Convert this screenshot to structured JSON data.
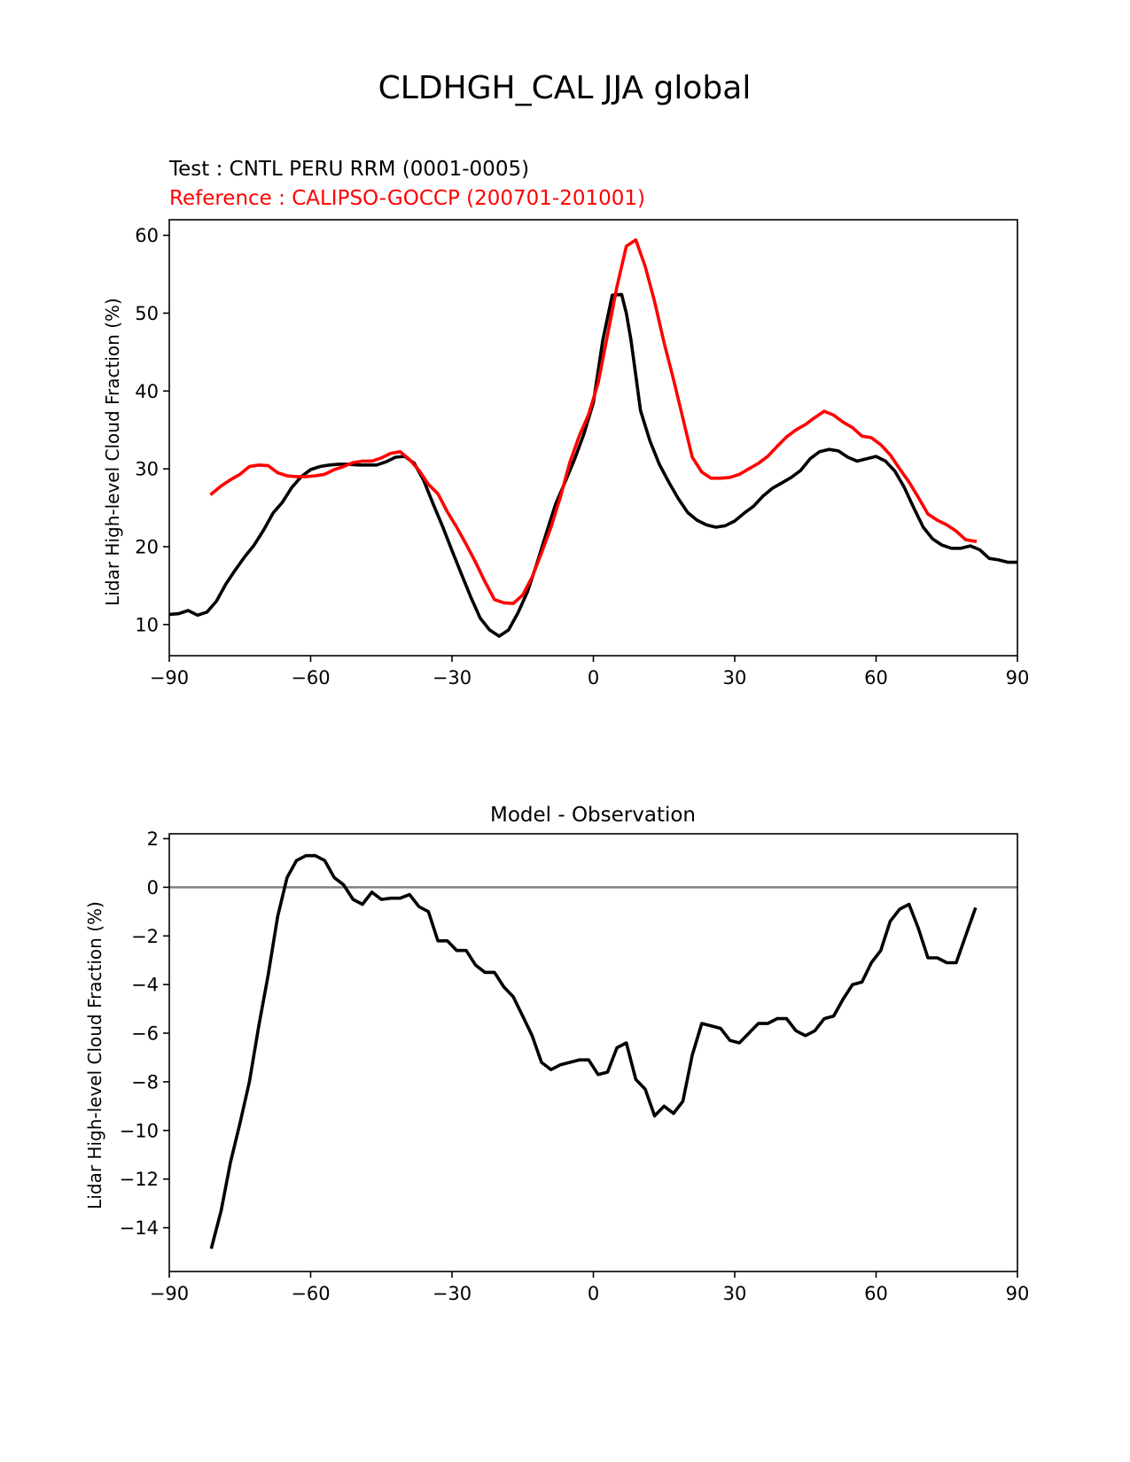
{
  "figure": {
    "suptitle": "CLDHGH_CAL JJA global",
    "colors": {
      "test": "#000000",
      "reference": "#ff0000",
      "zero_line": "#808080",
      "axes": "#000000"
    }
  },
  "chart_data": [
    {
      "type": "line",
      "test_label": "Test : CNTL PERU RRM (0001-0005)",
      "reference_label": "Reference : CALIPSO-GOCCP (200701-201001)",
      "xlabel": "",
      "ylabel": "Lidar High-level Cloud Fraction (%)",
      "xlim": [
        -90,
        90
      ],
      "ylim": [
        6,
        62
      ],
      "xticks": [
        -90,
        -60,
        -30,
        0,
        30,
        60,
        90
      ],
      "xtick_labels": [
        "−90",
        "−60",
        "−30",
        "0",
        "30",
        "60",
        "90"
      ],
      "yticks": [
        10,
        20,
        30,
        40,
        50,
        60
      ],
      "ytick_labels": [
        "10",
        "20",
        "30",
        "40",
        "50",
        "60"
      ],
      "series": [
        {
          "name": "Test",
          "color": "#000000",
          "x": [
            -90,
            -88,
            -86,
            -84,
            -82,
            -80,
            -78,
            -76,
            -74,
            -72,
            -70,
            -68,
            -66,
            -64,
            -62,
            -60,
            -58,
            -56,
            -54,
            -52,
            -50,
            -48,
            -46,
            -44,
            -42,
            -40,
            -38,
            -36,
            -34,
            -32,
            -30,
            -28,
            -26,
            -24,
            -22,
            -20,
            -18,
            -16,
            -14,
            -12,
            -10,
            -8,
            -6,
            -4,
            -2,
            0,
            2,
            4,
            6,
            7,
            8,
            9,
            10,
            12,
            14,
            16,
            18,
            20,
            22,
            24,
            26,
            28,
            30,
            32,
            34,
            36,
            38,
            40,
            42,
            44,
            46,
            48,
            50,
            52,
            54,
            56,
            58,
            60,
            62,
            64,
            66,
            68,
            70,
            72,
            74,
            76,
            78,
            80,
            82,
            84,
            86,
            88,
            90
          ],
          "values": [
            11.3,
            11.4,
            11.8,
            11.2,
            11.6,
            13.0,
            15.2,
            17.0,
            18.7,
            20.2,
            22.1,
            24.3,
            25.7,
            27.6,
            29.0,
            29.9,
            30.3,
            30.5,
            30.6,
            30.6,
            30.5,
            30.5,
            30.5,
            30.9,
            31.5,
            31.6,
            30.7,
            28.5,
            25.5,
            22.6,
            19.5,
            16.5,
            13.5,
            10.8,
            9.3,
            8.5,
            9.3,
            11.5,
            14.2,
            17.8,
            21.7,
            25.5,
            28.3,
            31.2,
            34.5,
            38.5,
            46.5,
            52.3,
            52.4,
            50.0,
            46.5,
            42.0,
            37.5,
            33.6,
            30.6,
            28.3,
            26.2,
            24.4,
            23.4,
            22.8,
            22.5,
            22.7,
            23.3,
            24.3,
            25.2,
            26.5,
            27.5,
            28.2,
            28.9,
            29.8,
            31.3,
            32.2,
            32.5,
            32.3,
            31.5,
            31.0,
            31.3,
            31.6,
            31.0,
            29.7,
            27.6,
            25.0,
            22.5,
            21.0,
            20.2,
            19.8,
            19.8,
            20.1,
            19.6,
            18.5,
            18.3,
            18.0,
            18.0
          ]
        },
        {
          "name": "Reference",
          "color": "#ff0000",
          "x": [
            -81,
            -79,
            -77,
            -75,
            -73,
            -71,
            -69,
            -67,
            -65,
            -63,
            -61,
            -59,
            -57,
            -55,
            -53,
            -51,
            -49,
            -47,
            -45,
            -43,
            -41,
            -39,
            -37,
            -35,
            -33,
            -31,
            -29,
            -27,
            -25,
            -23,
            -21,
            -19,
            -17,
            -15,
            -13,
            -11,
            -9,
            -7,
            -5,
            -3,
            -1,
            1,
            3,
            5,
            7,
            9,
            11,
            13,
            15,
            17,
            19,
            21,
            23,
            25,
            27,
            29,
            31,
            33,
            35,
            37,
            39,
            41,
            43,
            45,
            47,
            49,
            51,
            53,
            55,
            57,
            59,
            61,
            63,
            65,
            67,
            69,
            71,
            73,
            75,
            77,
            79,
            81
          ],
          "values": [
            26.8,
            27.8,
            28.6,
            29.3,
            30.3,
            30.5,
            30.4,
            29.5,
            29.1,
            29.0,
            29.0,
            29.1,
            29.3,
            29.9,
            30.3,
            30.8,
            31.0,
            31.0,
            31.4,
            32.0,
            32.2,
            31.2,
            29.8,
            28.0,
            26.8,
            24.5,
            22.5,
            20.3,
            18.0,
            15.5,
            13.2,
            12.8,
            12.7,
            13.8,
            16.1,
            19.2,
            22.5,
            26.4,
            30.8,
            34.2,
            37.0,
            41.0,
            47.2,
            53.4,
            58.6,
            59.4,
            56.0,
            51.5,
            46.2,
            41.5,
            36.5,
            31.5,
            29.6,
            28.8,
            28.8,
            28.9,
            29.3,
            30.0,
            30.7,
            31.6,
            32.9,
            34.1,
            35.0,
            35.7,
            36.6,
            37.4,
            36.9,
            36.0,
            35.3,
            34.2,
            34.0,
            33.1,
            31.8,
            30.0,
            28.3,
            26.3,
            24.2,
            23.4,
            22.8,
            22.0,
            20.9,
            20.7
          ]
        }
      ]
    },
    {
      "type": "line",
      "title": "Model - Observation",
      "xlabel": "",
      "ylabel": "Lidar High-level Cloud Fraction (%)",
      "xlim": [
        -90,
        90
      ],
      "ylim": [
        -15.8,
        2.2
      ],
      "xticks": [
        -90,
        -60,
        -30,
        0,
        30,
        60,
        90
      ],
      "xtick_labels": [
        "−90",
        "−60",
        "−30",
        "0",
        "30",
        "60",
        "90"
      ],
      "yticks": [
        2,
        0,
        -2,
        -4,
        -6,
        -8,
        -10,
        -12,
        -14
      ],
      "ytick_labels": [
        "2",
        "0",
        "−2",
        "−4",
        "−6",
        "−8",
        "−10",
        "−12",
        "−14"
      ],
      "zero_line": 0,
      "series": [
        {
          "name": "Model - Observation",
          "color": "#000000",
          "x": [
            -81,
            -79,
            -77,
            -75,
            -73,
            -71,
            -69,
            -67,
            -65,
            -63,
            -61,
            -59,
            -57,
            -55,
            -53,
            -51,
            -49,
            -47,
            -45,
            -43,
            -41,
            -39,
            -37,
            -35,
            -33,
            -31,
            -29,
            -27,
            -25,
            -23,
            -21,
            -19,
            -17,
            -15,
            -13,
            -11,
            -9,
            -7,
            -5,
            -3,
            -1,
            1,
            3,
            5,
            7,
            9,
            11,
            13,
            15,
            17,
            19,
            21,
            23,
            25,
            27,
            29,
            31,
            33,
            35,
            37,
            39,
            41,
            43,
            45,
            47,
            49,
            51,
            53,
            55,
            57,
            59,
            61,
            63,
            65,
            67,
            69,
            71,
            73,
            75,
            77,
            79,
            81
          ],
          "values": [
            -14.8,
            -13.3,
            -11.3,
            -9.7,
            -8.0,
            -5.7,
            -3.6,
            -1.2,
            0.4,
            1.1,
            1.3,
            1.3,
            1.1,
            0.4,
            0.1,
            -0.5,
            -0.7,
            -0.2,
            -0.5,
            -0.45,
            -0.45,
            -0.3,
            -0.8,
            -1.0,
            -2.2,
            -2.2,
            -2.6,
            -2.6,
            -3.2,
            -3.5,
            -3.5,
            -4.1,
            -4.5,
            -5.3,
            -6.1,
            -7.2,
            -7.5,
            -7.3,
            -7.2,
            -7.1,
            -7.1,
            -7.7,
            -7.6,
            -6.6,
            -6.4,
            -7.9,
            -8.3,
            -9.4,
            -9.0,
            -9.3,
            -8.8,
            -6.9,
            -5.6,
            -5.7,
            -5.8,
            -6.3,
            -6.4,
            -6.0,
            -5.6,
            -5.6,
            -5.4,
            -5.4,
            -5.9,
            -6.1,
            -5.9,
            -5.4,
            -5.3,
            -4.6,
            -4.0,
            -3.9,
            -3.1,
            -2.6,
            -1.4,
            -0.9,
            -0.7,
            -1.7,
            -2.9,
            -2.9,
            -3.1,
            -3.1,
            -2.0,
            -0.9
          ]
        }
      ]
    }
  ]
}
